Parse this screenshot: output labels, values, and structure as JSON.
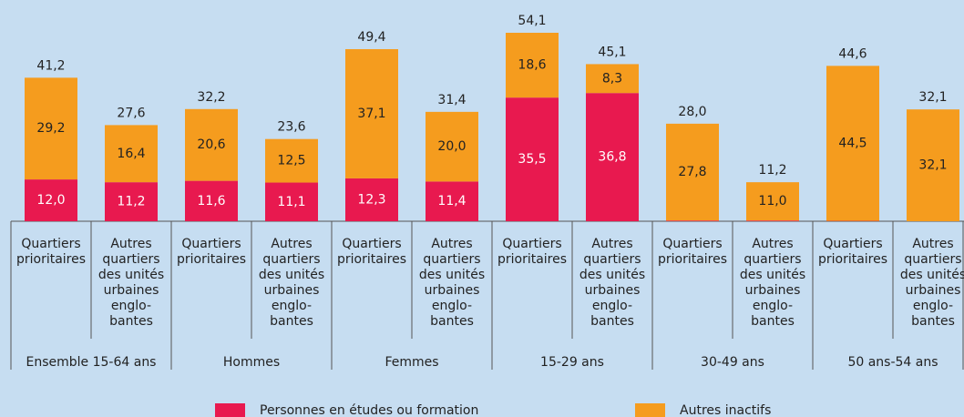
{
  "chart_data": {
    "type": "stacked_bar",
    "categories": [
      [
        "Quartiers",
        "prioritaires"
      ],
      [
        "Autres",
        "quartiers",
        "des unités",
        "urbaines",
        "englo-",
        "bantes"
      ],
      [
        "Quartiers",
        "prioritaires"
      ],
      [
        "Autres",
        "quartiers",
        "des unités",
        "urbaines",
        "englo-",
        "bantes"
      ],
      [
        "Quartiers",
        "prioritaires"
      ],
      [
        "Autres",
        "quartiers",
        "des unités",
        "urbaines",
        "englo-",
        "bantes"
      ],
      [
        "Quartiers",
        "prioritaires"
      ],
      [
        "Autres",
        "quartiers",
        "des unités",
        "urbaines",
        "englo-",
        "bantes"
      ],
      [
        "Quartiers",
        "prioritaires"
      ],
      [
        "Autres",
        "quartiers",
        "des unités",
        "urbaines",
        "englo-",
        "bantes"
      ],
      [
        "Quartiers",
        "prioritaires"
      ],
      [
        "Autres",
        "quartiers",
        "des unités",
        "urbaines",
        "englo-",
        "bantes"
      ]
    ],
    "groups": [
      "Ensemble 15-64 ans",
      "Hommes",
      "Femmes",
      "15-29 ans",
      "30-49 ans",
      "50 ans-54 ans"
    ],
    "series": [
      {
        "name": "Personnes en études ou formation",
        "color": "#e8194f",
        "values": [
          12.0,
          11.2,
          11.6,
          11.1,
          12.3,
          11.4,
          35.5,
          36.8,
          0.2,
          0.2,
          0.1,
          0
        ],
        "value_labels": [
          "12,0",
          "11,2",
          "11,6",
          "11,1",
          "12,3",
          "11,4",
          "35,5",
          "36,8",
          null,
          null,
          null,
          null
        ]
      },
      {
        "name": "Autres inactifs",
        "color": "#f59c1e",
        "values": [
          29.2,
          16.4,
          20.6,
          12.5,
          37.1,
          20.0,
          18.6,
          8.3,
          27.8,
          11.0,
          44.5,
          32.1
        ],
        "value_labels": [
          "29,2",
          "16,4",
          "20,6",
          "12,5",
          "37,1",
          "20,0",
          "18,6",
          "8,3",
          "27,8",
          "11,0",
          "44,5",
          "32,1"
        ]
      }
    ],
    "totals": [
      41.2,
      27.6,
      32.2,
      23.6,
      49.4,
      31.4,
      54.1,
      45.1,
      28.0,
      11.2,
      44.6,
      32.1
    ],
    "total_labels": [
      "41,2",
      "27,6",
      "32,2",
      "23,6",
      "49,4",
      "31,4",
      "54,1",
      "45,1",
      "28,0",
      "11,2",
      "44,6",
      "32,1"
    ]
  }
}
